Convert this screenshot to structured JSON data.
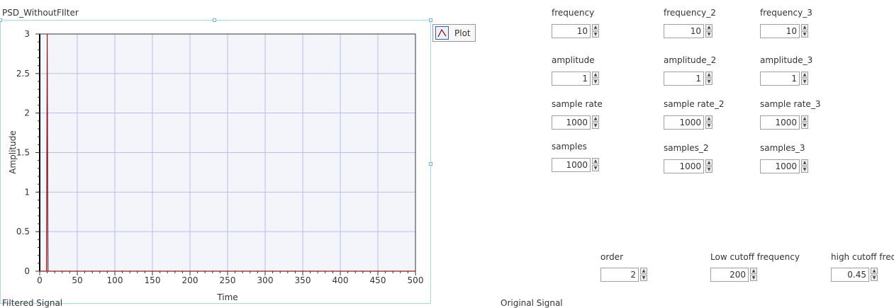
{
  "graph": {
    "title": "PSD_WithoutFIlter",
    "legend_label": "Plot",
    "plot_color": "#8b1a1a",
    "plot_bg": "#f4f5fb",
    "grid_color": "#b9bfe6"
  },
  "chart_data": {
    "type": "line",
    "xlabel": "Time",
    "ylabel": "Amplitude",
    "xlim": [
      0,
      500
    ],
    "ylim": [
      0,
      3
    ],
    "xticks": [
      "0",
      "50",
      "100",
      "150",
      "200",
      "250",
      "300",
      "350",
      "400",
      "450",
      "500"
    ],
    "yticks": [
      "0",
      "0.5",
      "1",
      "1.5",
      "2",
      "2.5",
      "3"
    ],
    "grid": true,
    "series": [
      {
        "x": [
          0,
          9,
          10,
          11,
          12,
          500
        ],
        "y": [
          0,
          0,
          3,
          0,
          0,
          0
        ]
      }
    ]
  },
  "controls": {
    "col1": [
      {
        "label": "frequency",
        "value": "10"
      },
      {
        "label": "amplitude",
        "value": "1"
      },
      {
        "label": "sample rate",
        "value": "1000"
      },
      {
        "label": "samples",
        "value": "1000"
      }
    ],
    "col2": [
      {
        "label": "frequency_2",
        "value": "10"
      },
      {
        "label": "amplitude_2",
        "value": "1"
      },
      {
        "label": "sample rate_2",
        "value": "1000"
      },
      {
        "label": "samples_2",
        "value": "1000"
      }
    ],
    "col3": [
      {
        "label": "frequency_3",
        "value": "10"
      },
      {
        "label": "amplitude_3",
        "value": "1"
      },
      {
        "label": "sample rate_3",
        "value": "1000"
      },
      {
        "label": "samples_3",
        "value": "1000"
      }
    ]
  },
  "filter": {
    "order": {
      "label": "order",
      "value": "2"
    },
    "low_cutoff": {
      "label": "Low cutoff frequency",
      "value": "200"
    },
    "high_cutoff": {
      "label": "high cutoff frequ",
      "value": "0.45"
    }
  },
  "bottom_labels": {
    "filtered": "Filtered Signal",
    "original": "Original Signal"
  }
}
